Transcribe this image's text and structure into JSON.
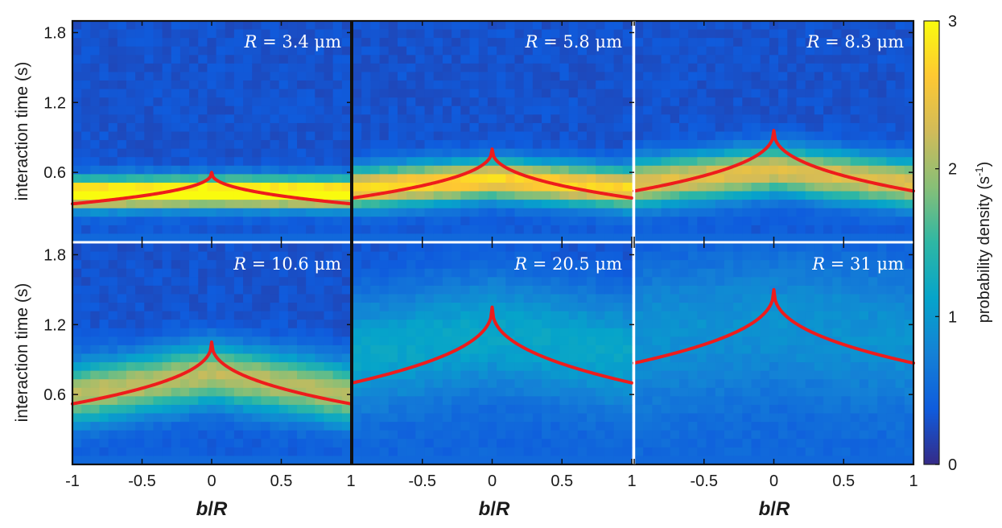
{
  "figure": {
    "title": ""
  },
  "chart_data": {
    "type": "heatmap",
    "panel_grid": [
      "2 rows",
      "3 columns"
    ],
    "xlabel": "b/R",
    "xlabel_parts": {
      "var": "b",
      "sep": "/",
      "den": "R"
    },
    "ylabel": "interaction time (s)",
    "xlim": [
      -1,
      1
    ],
    "ylim": [
      0,
      1.9
    ],
    "x_ticks": [
      -1,
      -0.5,
      0,
      0.5,
      1
    ],
    "x_tick_labels": [
      "-1",
      "-0.5",
      "0",
      "0.5",
      "1"
    ],
    "x_tick_labels_right_panels": [
      "",
      "-0.5",
      "0",
      "0.5",
      "1"
    ],
    "y_ticks": [
      0.6,
      1.2,
      1.8
    ],
    "y_tick_labels": [
      "0.6",
      "1.2",
      "1.8"
    ],
    "colorbar": {
      "label": "probability density (s⁻¹)",
      "label_base": "probability density (s",
      "label_exp": "-1",
      "label_close": ")",
      "range": [
        0,
        3
      ],
      "ticks": [
        0,
        1,
        2,
        3
      ],
      "tick_labels": [
        "0",
        "1",
        "2",
        "3"
      ],
      "colormap": "parula",
      "colors": [
        "#352a87",
        "#0f5cdd",
        "#1481d6",
        "#06a4ca",
        "#2eb7a4",
        "#87bf77",
        "#d1bb59",
        "#fec832",
        "#f9fb0e"
      ]
    },
    "fit_line_color": "#ee1c1c",
    "panels": [
      {
        "label": "R = 3.4 μm",
        "label_var": "R",
        "label_eq": " = ",
        "label_val": "3.4",
        "label_unit": "μm",
        "radius_um": 3.4,
        "band_center_s": 0.42,
        "band_width_s": 0.09,
        "band_peak": 3.0,
        "band_slope": 0.01,
        "fit_peak_s": 0.6,
        "fit_edge_s": 0.33
      },
      {
        "label": "R = 5.8 μm",
        "label_var": "R",
        "label_eq": " = ",
        "label_val": "5.8",
        "label_unit": "μm",
        "radius_um": 5.8,
        "band_center_s": 0.46,
        "band_width_s": 0.12,
        "band_peak": 2.45,
        "band_slope": 0.08,
        "fit_peak_s": 0.8,
        "fit_edge_s": 0.38
      },
      {
        "label": "R = 8.3 μm",
        "label_var": "R",
        "label_eq": " = ",
        "label_val": "8.3",
        "label_unit": "μm",
        "radius_um": 8.3,
        "band_center_s": 0.5,
        "band_width_s": 0.14,
        "band_peak": 2.1,
        "band_slope": 0.12,
        "fit_peak_s": 0.96,
        "fit_edge_s": 0.44
      },
      {
        "label": "R = 10.6 μm",
        "label_var": "R",
        "label_eq": " = ",
        "label_val": "10.6",
        "label_unit": "μm",
        "radius_um": 10.6,
        "band_center_s": 0.6,
        "band_width_s": 0.18,
        "band_peak": 1.85,
        "band_slope": 0.18,
        "fit_peak_s": 1.05,
        "fit_edge_s": 0.52
      },
      {
        "label": "R = 20.5 μm",
        "label_var": "R",
        "label_eq": " = ",
        "label_val": "20.5",
        "label_unit": "μm",
        "radius_um": 20.5,
        "band_center_s": 0.95,
        "band_width_s": 0.35,
        "band_peak": 0.85,
        "band_slope": 0.2,
        "fit_peak_s": 1.35,
        "fit_edge_s": 0.7
      },
      {
        "label": "R = 31 μm",
        "label_var": "R",
        "label_eq": " = ",
        "label_val": "31",
        "label_unit": "μm",
        "radius_um": 31,
        "band_center_s": 1.1,
        "band_width_s": 0.45,
        "band_peak": 0.62,
        "band_slope": 0.15,
        "fit_peak_s": 1.5,
        "fit_edge_s": 0.87
      }
    ]
  }
}
